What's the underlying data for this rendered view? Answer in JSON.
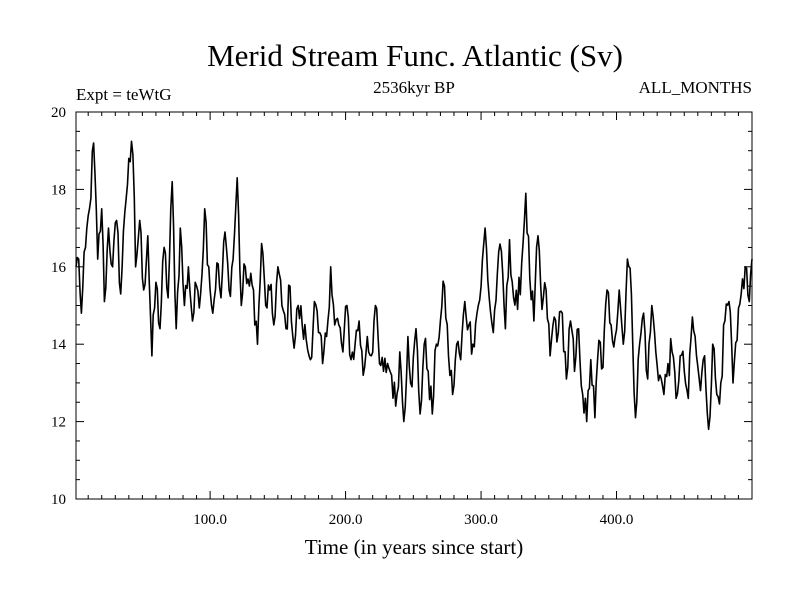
{
  "chart_data": {
    "type": "line",
    "title": "Merid Stream Func. Atlantic (Sv)",
    "subtitle_left": "Expt = teWtG",
    "subtitle_center": "2536kyr BP",
    "subtitle_right": "ALL_MONTHS",
    "xlabel": "Time (in years since start)",
    "ylabel": "",
    "xlim": [
      1,
      500
    ],
    "ylim": [
      10,
      20
    ],
    "xticks": [
      100,
      200,
      300,
      400
    ],
    "xtick_labels": [
      "100.0",
      "200.0",
      "300.0",
      "400.0"
    ],
    "yticks": [
      10,
      12,
      14,
      16,
      18,
      20
    ],
    "ytick_labels": [
      "10",
      "12",
      "14",
      "16",
      "18",
      "20"
    ],
    "grid": false,
    "series": [
      {
        "name": "Merid Stream Func. Atlantic",
        "color": "#000000",
        "anchors_x": [
          1,
          3,
          5,
          8,
          11,
          14,
          17,
          20,
          22,
          25,
          28,
          31,
          34,
          37,
          40,
          43,
          45,
          48,
          51,
          54,
          57,
          60,
          63,
          66,
          69,
          72,
          75,
          78,
          81,
          84,
          87,
          90,
          93,
          96,
          99,
          102,
          105,
          108,
          111,
          114,
          117,
          120,
          123,
          126,
          129,
          132,
          135,
          138,
          141,
          144,
          147,
          150,
          153,
          156,
          159,
          162,
          165,
          168,
          171,
          174,
          177,
          180,
          183,
          186,
          189,
          192,
          195,
          198,
          201,
          204,
          207,
          210,
          213,
          216,
          219,
          222,
          225,
          228,
          231,
          234,
          237,
          240,
          243,
          246,
          249,
          252,
          255,
          258,
          261,
          264,
          267,
          270,
          273,
          276,
          279,
          282,
          285,
          288,
          291,
          294,
          297,
          300,
          303,
          306,
          309,
          312,
          315,
          318,
          321,
          324,
          327,
          330,
          333,
          336,
          339,
          342,
          345,
          348,
          351,
          354,
          357,
          360,
          363,
          366,
          369,
          372,
          375,
          378,
          381,
          384,
          387,
          390,
          393,
          396,
          399,
          402,
          405,
          408,
          411,
          414,
          417,
          420,
          423,
          426,
          429,
          432,
          435,
          438,
          441,
          444,
          447,
          450,
          453,
          456,
          459,
          462,
          465,
          468,
          471,
          474,
          477,
          480,
          483,
          486,
          489,
          492,
          495,
          498,
          500
        ],
        "anchors_y": [
          16.0,
          16.2,
          14.8,
          16.5,
          17.5,
          19.2,
          16.2,
          17.5,
          15.1,
          17.0,
          16.0,
          17.2,
          15.3,
          17.4,
          18.8,
          18.9,
          16.0,
          17.2,
          15.4,
          16.8,
          13.7,
          15.6,
          14.4,
          16.5,
          15.2,
          18.2,
          14.4,
          17.0,
          15.0,
          16.0,
          14.6,
          15.5,
          15.3,
          17.5,
          16.0,
          14.8,
          16.1,
          15.2,
          16.9,
          15.4,
          16.2,
          18.3,
          15.0,
          16.0,
          15.5,
          15.4,
          14.0,
          16.6,
          15.0,
          15.4,
          14.5,
          16.0,
          15.0,
          14.4,
          15.5,
          13.9,
          15.0,
          14.5,
          14.1,
          13.6,
          15.1,
          14.3,
          13.5,
          14.2,
          16.0,
          14.5,
          14.5,
          13.8,
          15.0,
          13.6,
          14.0,
          14.6,
          13.2,
          14.2,
          13.7,
          15.0,
          13.5,
          13.3,
          13.5,
          13.2,
          12.4,
          13.8,
          12.0,
          14.2,
          12.9,
          14.4,
          12.2,
          14.0,
          13.3,
          12.2,
          14.0,
          14.6,
          15.5,
          13.7,
          12.7,
          14.0,
          13.6,
          15.1,
          14.5,
          14.0,
          14.8,
          15.5,
          17.0,
          15.2,
          14.3,
          15.8,
          16.4,
          14.4,
          16.7,
          15.2,
          14.9,
          16.1,
          17.9,
          15.7,
          14.6,
          16.8,
          14.9,
          15.4,
          13.7,
          14.7,
          14.3,
          14.8,
          13.1,
          14.6,
          13.3,
          14.4,
          12.7,
          12.0,
          13.6,
          12.1,
          14.1,
          13.4,
          15.4,
          14.5,
          14.2,
          15.4,
          14.0,
          16.2,
          15.3,
          12.1,
          14.0,
          14.8,
          13.1,
          15.0,
          13.8,
          13.2,
          12.7,
          13.5,
          13.8,
          12.6,
          13.7,
          13.3,
          12.6,
          14.7,
          13.7,
          12.8,
          13.7,
          11.8,
          14.0,
          12.7,
          13.0,
          14.6,
          15.1,
          13.0,
          14.1,
          15.3,
          16.0,
          15.1,
          16.2
        ]
      }
    ]
  }
}
